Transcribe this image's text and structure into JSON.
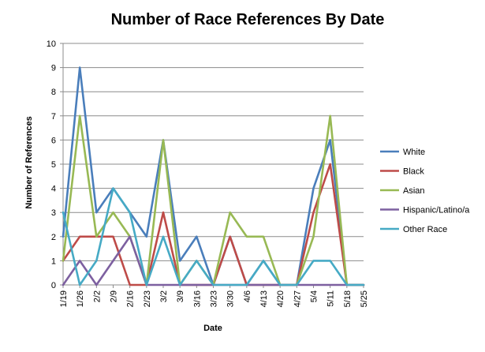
{
  "chart_data": {
    "type": "line",
    "title": "Number of Race References By Date",
    "xlabel": "Date",
    "ylabel": "Number of References",
    "ylim": [
      0,
      10
    ],
    "yticks": [
      "0",
      "1",
      "2",
      "3",
      "4",
      "5",
      "6",
      "7",
      "8",
      "9",
      "10"
    ],
    "grid": true,
    "legend_position": "right",
    "categories": [
      "1/19",
      "1/26",
      "2/2",
      "2/9",
      "2/16",
      "2/23",
      "3/2",
      "3/9",
      "3/16",
      "3/23",
      "3/30",
      "4/6",
      "4/13",
      "4/20",
      "4/27",
      "5/4",
      "5/11",
      "5/18",
      "5/25"
    ],
    "series": [
      {
        "name": "White",
        "color": "#4a7ebb",
        "values": [
          2,
          9,
          3,
          4,
          3,
          2,
          6,
          1,
          2,
          0,
          2,
          0,
          1,
          0,
          0,
          4,
          6,
          0,
          0
        ]
      },
      {
        "name": "Black",
        "color": "#be4b48",
        "values": [
          1,
          2,
          2,
          2,
          0,
          0,
          3,
          0,
          0,
          0,
          2,
          0,
          0,
          0,
          0,
          3,
          5,
          0,
          0
        ]
      },
      {
        "name": "Asian",
        "color": "#98b954",
        "values": [
          1,
          7,
          2,
          3,
          2,
          0,
          6,
          0,
          1,
          0,
          3,
          2,
          2,
          0,
          0,
          2,
          7,
          0,
          0
        ]
      },
      {
        "name": "Hispanic/Latino/a",
        "color": "#7d60a0",
        "values": [
          0,
          1,
          0,
          1,
          2,
          0,
          0,
          0,
          0,
          0,
          0,
          0,
          0,
          0,
          0,
          0,
          0,
          0,
          0
        ]
      },
      {
        "name": "Other Race",
        "color": "#46aac5",
        "values": [
          3,
          0,
          1,
          4,
          3,
          0,
          2,
          0,
          1,
          0,
          0,
          0,
          1,
          0,
          0,
          1,
          1,
          0,
          0
        ]
      }
    ]
  }
}
